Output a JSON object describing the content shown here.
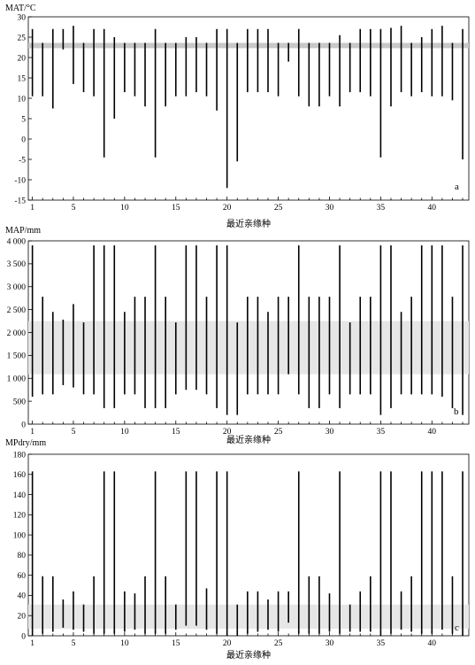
{
  "chart_data": [
    {
      "type": "range-bar",
      "panel": "a",
      "ylabel": "MAT/°C",
      "xlabel": "最近亲缘种",
      "ylim": [
        -15,
        30
      ],
      "yticks": [
        -15,
        -10,
        -5,
        0,
        5,
        10,
        15,
        20,
        25,
        30
      ],
      "xlim": [
        0.6,
        43.6
      ],
      "xticks": [
        1,
        5,
        10,
        15,
        20,
        25,
        30,
        35,
        40
      ],
      "band": {
        "low": 22.3,
        "high": 23.6,
        "color": "#c8c8c8"
      },
      "ranges": [
        [
          10.5,
          27
        ],
        [
          10.5,
          23.6
        ],
        [
          7.5,
          27
        ],
        [
          22,
          27
        ],
        [
          13.5,
          27.8
        ],
        [
          11.5,
          23.6
        ],
        [
          10.5,
          27
        ],
        [
          -4.5,
          27
        ],
        [
          5,
          25
        ],
        [
          11.5,
          23.6
        ],
        [
          10.5,
          23.6
        ],
        [
          8,
          23.6
        ],
        [
          -4.5,
          27
        ],
        [
          8,
          23.6
        ],
        [
          10.5,
          23.6
        ],
        [
          10.5,
          25
        ],
        [
          11.5,
          25
        ],
        [
          10.5,
          23.6
        ],
        [
          7,
          27
        ],
        [
          -12,
          27
        ],
        [
          -5.5,
          23.6
        ],
        [
          11.5,
          27
        ],
        [
          11.5,
          27
        ],
        [
          11.5,
          27
        ],
        [
          10.5,
          23.6
        ],
        [
          19,
          23.6
        ],
        [
          10.5,
          27
        ],
        [
          8,
          23.6
        ],
        [
          8,
          23.6
        ],
        [
          10.5,
          23.6
        ],
        [
          8,
          25.5
        ],
        [
          11.5,
          23.6
        ],
        [
          11.5,
          27
        ],
        [
          10.5,
          27
        ],
        [
          -4.5,
          27
        ],
        [
          8,
          27.3
        ],
        [
          11.5,
          27.8
        ],
        [
          10.5,
          23.6
        ],
        [
          11.5,
          25
        ],
        [
          10.5,
          27
        ],
        [
          10.5,
          27.8
        ],
        [
          9.5,
          23.6
        ],
        [
          -5,
          27
        ]
      ]
    },
    {
      "type": "range-bar",
      "panel": "b",
      "ylabel": "MAP/mm",
      "xlabel": "最近亲缘种",
      "ylim": [
        0,
        4000
      ],
      "yticks": [
        0,
        500,
        1000,
        1500,
        2000,
        2500,
        3000,
        3500,
        4000
      ],
      "ytick_labels": [
        "0",
        "500",
        "1 000",
        "1 500",
        "2 000",
        "2 500",
        "3 000",
        "3 500",
        "4 000"
      ],
      "xlim": [
        0.6,
        43.6
      ],
      "xticks": [
        1,
        5,
        10,
        15,
        20,
        25,
        30,
        35,
        40
      ],
      "band": {
        "low": 1090,
        "high": 2250,
        "color": "#e6e6e6"
      },
      "ranges": [
        [
          600,
          3900
        ],
        [
          650,
          2780
        ],
        [
          650,
          2450
        ],
        [
          850,
          2280
        ],
        [
          800,
          2620
        ],
        [
          650,
          2220
        ],
        [
          650,
          3900
        ],
        [
          350,
          3900
        ],
        [
          350,
          3900
        ],
        [
          650,
          2450
        ],
        [
          650,
          2780
        ],
        [
          350,
          2780
        ],
        [
          350,
          3900
        ],
        [
          350,
          2780
        ],
        [
          650,
          2220
        ],
        [
          750,
          3900
        ],
        [
          750,
          3900
        ],
        [
          650,
          2780
        ],
        [
          350,
          3900
        ],
        [
          200,
          3900
        ],
        [
          200,
          2220
        ],
        [
          650,
          2780
        ],
        [
          650,
          2780
        ],
        [
          650,
          2450
        ],
        [
          650,
          2780
        ],
        [
          1090,
          2780
        ],
        [
          650,
          3900
        ],
        [
          350,
          2780
        ],
        [
          350,
          2780
        ],
        [
          650,
          2780
        ],
        [
          350,
          3900
        ],
        [
          650,
          2220
        ],
        [
          650,
          2780
        ],
        [
          650,
          2780
        ],
        [
          200,
          3900
        ],
        [
          350,
          3900
        ],
        [
          650,
          2450
        ],
        [
          650,
          2780
        ],
        [
          650,
          3900
        ],
        [
          650,
          3900
        ],
        [
          600,
          3900
        ],
        [
          350,
          2780
        ],
        [
          200,
          3900
        ]
      ]
    },
    {
      "type": "range-bar",
      "panel": "c",
      "ylabel": "MPdry/mm",
      "xlabel": "最近亲缘种",
      "ylim": [
        0,
        180
      ],
      "yticks": [
        0,
        20,
        40,
        60,
        80,
        100,
        120,
        140,
        160,
        180
      ],
      "xlim": [
        0.6,
        43.6
      ],
      "xticks": [
        1,
        5,
        10,
        15,
        20,
        25,
        30,
        35,
        40
      ],
      "band": {
        "low": 7,
        "high": 31,
        "color": "#e6e6e6"
      },
      "ranges": [
        [
          0,
          163
        ],
        [
          2,
          59
        ],
        [
          4,
          59
        ],
        [
          8,
          36
        ],
        [
          6,
          44
        ],
        [
          4,
          31
        ],
        [
          2,
          59
        ],
        [
          2,
          163
        ],
        [
          2,
          163
        ],
        [
          4,
          44
        ],
        [
          6,
          42
        ],
        [
          2,
          59
        ],
        [
          2,
          163
        ],
        [
          2,
          59
        ],
        [
          6,
          31
        ],
        [
          10,
          163
        ],
        [
          10,
          163
        ],
        [
          6,
          47
        ],
        [
          2,
          163
        ],
        [
          0,
          163
        ],
        [
          0,
          31
        ],
        [
          2,
          44
        ],
        [
          4,
          44
        ],
        [
          6,
          36
        ],
        [
          4,
          44
        ],
        [
          13,
          44
        ],
        [
          2,
          163
        ],
        [
          2,
          59
        ],
        [
          2,
          59
        ],
        [
          4,
          42
        ],
        [
          2,
          163
        ],
        [
          4,
          31
        ],
        [
          4,
          44
        ],
        [
          4,
          59
        ],
        [
          0,
          163
        ],
        [
          2,
          163
        ],
        [
          6,
          44
        ],
        [
          4,
          59
        ],
        [
          2,
          163
        ],
        [
          2,
          163
        ],
        [
          6,
          163
        ],
        [
          2,
          59
        ],
        [
          0,
          163
        ]
      ]
    }
  ]
}
